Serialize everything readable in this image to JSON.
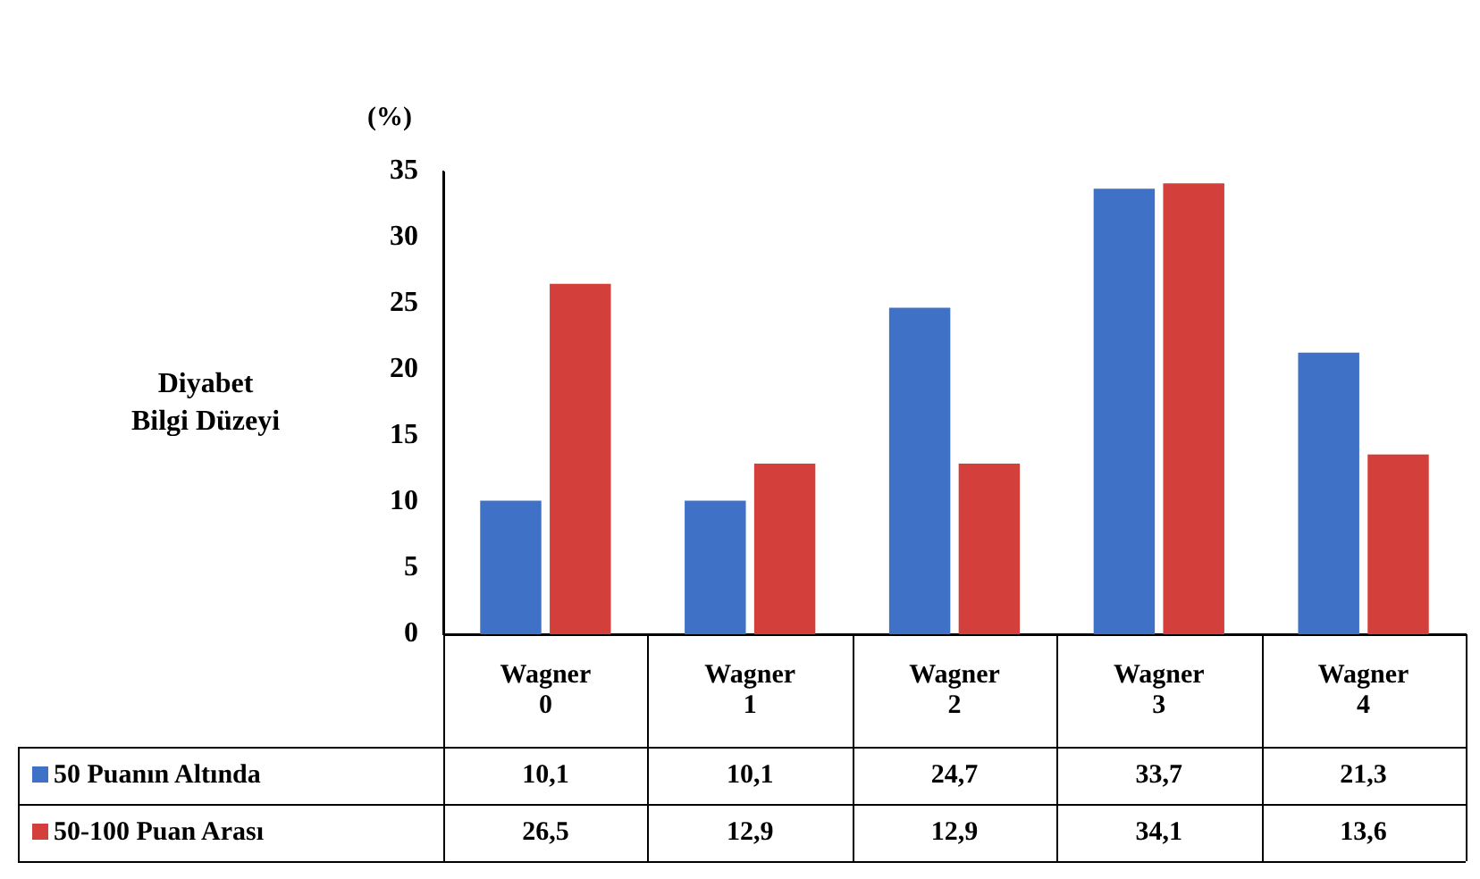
{
  "chart_data": {
    "type": "bar",
    "ylabel": "Diyabet Bilgi Düzeyi",
    "annotations": [
      "(%)"
    ],
    "categories": [
      "Wagner 0",
      "Wagner 1",
      "Wagner 2",
      "Wagner 3",
      "Wagner 4"
    ],
    "series": [
      {
        "name": "50 Puanın Altında",
        "color": "#3f72c6",
        "values": [
          10.1,
          10.1,
          24.7,
          33.7,
          21.3
        ],
        "value_labels": [
          "10,1",
          "10,1",
          "24,7",
          "33,7",
          "21,3"
        ]
      },
      {
        "name": "50-100 Puan Arası",
        "color": "#d33f3b",
        "values": [
          26.5,
          12.9,
          12.9,
          34.1,
          13.6
        ],
        "value_labels": [
          "26,5",
          "12,9",
          "12,9",
          "34,1",
          "13,6"
        ]
      }
    ],
    "ylim": [
      0,
      35
    ],
    "yticks": [
      0,
      5,
      10,
      15,
      20,
      25,
      30,
      35
    ],
    "legend": "bottom"
  }
}
